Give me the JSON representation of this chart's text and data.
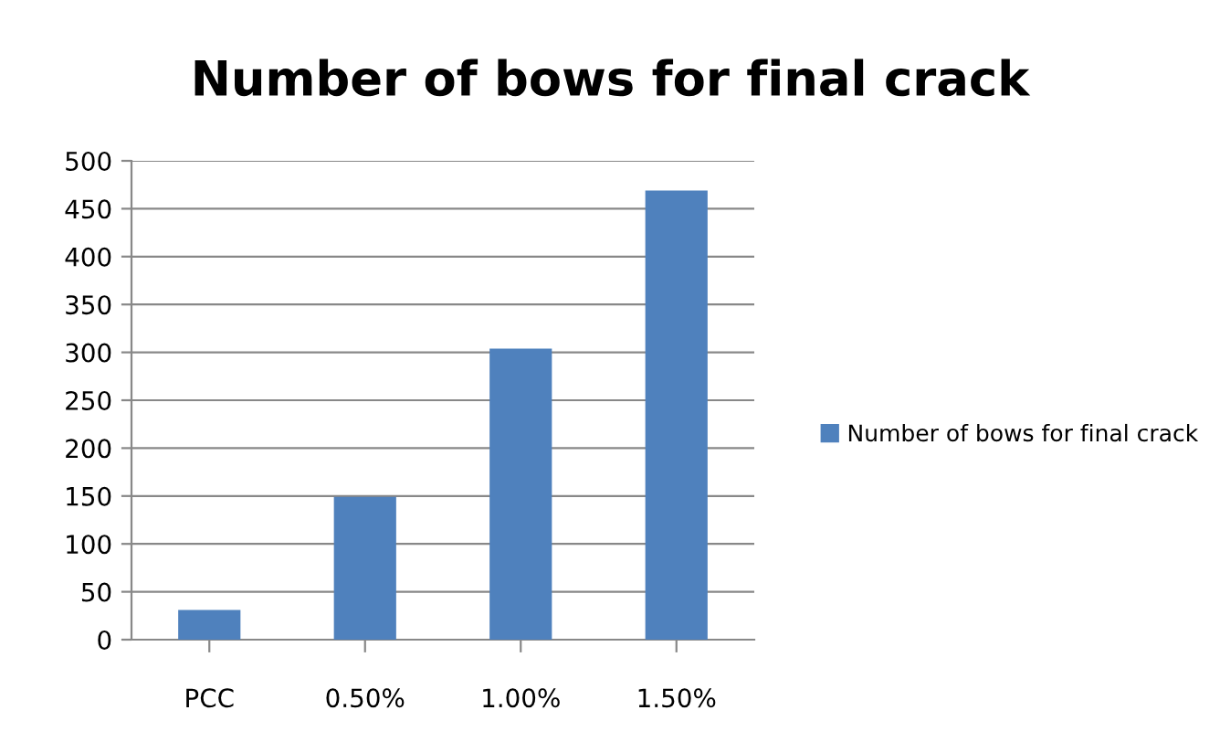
{
  "chart_data": {
    "type": "bar",
    "title": "Number of bows for final crack",
    "categories": [
      "PCC",
      "0.50%",
      "1.00%",
      "1.50%"
    ],
    "series": [
      {
        "name": "Number of bows for final crack",
        "color": "#4f81bd",
        "values": [
          31,
          149,
          304,
          469
        ]
      }
    ],
    "ylim": [
      0,
      500
    ],
    "yticks": [
      0,
      50,
      100,
      150,
      200,
      250,
      300,
      350,
      400,
      450,
      500
    ],
    "grid": "y",
    "legend": "right"
  }
}
